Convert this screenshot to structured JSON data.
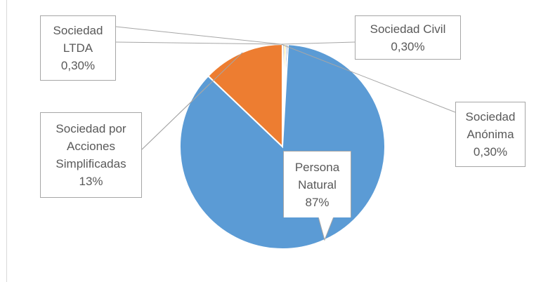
{
  "chart_data": {
    "type": "pie",
    "categories": [
      "Sociedad LTDA",
      "Sociedad Civil",
      "Sociedad Anónima",
      "Persona Natural",
      "Sociedad por Acciones Simplificadas"
    ],
    "values": [
      0.3,
      0.3,
      0.3,
      87,
      13
    ],
    "value_labels": [
      "0,30%",
      "0,30%",
      "0,30%",
      "87%",
      "13%"
    ],
    "colors": [
      "#a5a5a5",
      "#ffc000",
      "#4472c4",
      "#5b9bd5",
      "#ed7d31"
    ]
  }
}
